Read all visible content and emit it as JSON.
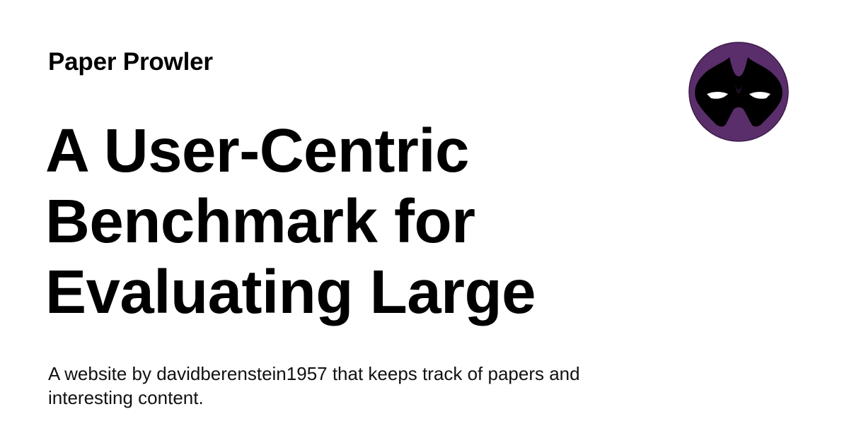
{
  "site": {
    "name": "Paper Prowler"
  },
  "article": {
    "title_lines": [
      "A User-Centric",
      "Benchmark for",
      "Evaluating Large"
    ]
  },
  "site_description": {
    "line1": "A website by davidberenstein1957 that keeps track of papers and",
    "line2": "interesting content."
  },
  "logo": {
    "icon": "masked-face-logo-icon",
    "background_color": "#5a2d6b",
    "mask_color": "#000000",
    "eye_color": "#ffffff"
  }
}
